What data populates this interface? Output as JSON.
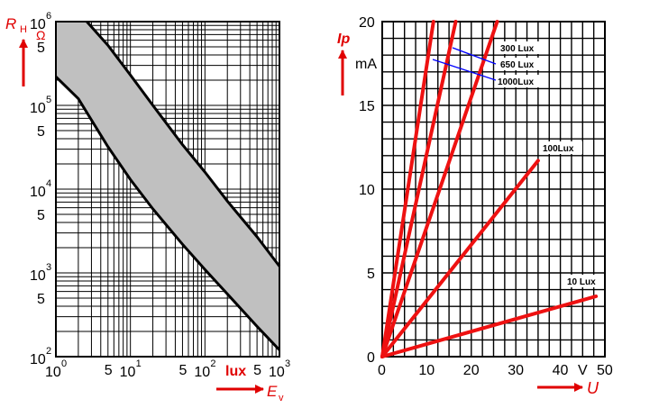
{
  "chart_data": [
    {
      "type": "area",
      "scale": "log-log",
      "grid": true,
      "xlabel": "E",
      "xlabel_sub": "v",
      "xunit": "lux",
      "ylabel": "R",
      "ylabel_sub": "H",
      "yunit": "Ω",
      "xlim": [
        1,
        1000
      ],
      "ylim": [
        100,
        1000000
      ],
      "x_ticks": [
        {
          "base": "10",
          "exp": "0",
          "v": 1
        },
        {
          "base": "5",
          "exp": "",
          "v": 5
        },
        {
          "base": "10",
          "exp": "1",
          "v": 10
        },
        {
          "base": "5",
          "exp": "",
          "v": 50
        },
        {
          "base": "10",
          "exp": "2",
          "v": 100
        },
        {
          "base": "5",
          "exp": "",
          "v": 500
        },
        {
          "base": "10",
          "exp": "3",
          "v": 1000
        }
      ],
      "y_ticks": [
        {
          "base": "10",
          "exp": "6",
          "v": 1000000
        },
        {
          "base": "5",
          "exp": "",
          "v": 500000
        },
        {
          "base": "10",
          "exp": "5",
          "v": 100000
        },
        {
          "base": "5",
          "exp": "",
          "v": 50000
        },
        {
          "base": "10",
          "exp": "4",
          "v": 10000
        },
        {
          "base": "5",
          "exp": "",
          "v": 5000
        },
        {
          "base": "10",
          "exp": "3",
          "v": 1000
        },
        {
          "base": "5",
          "exp": "",
          "v": 500
        },
        {
          "base": "10",
          "exp": "2",
          "v": 100
        }
      ],
      "series": [
        {
          "name": "upper",
          "x": [
            2.6,
            5,
            10,
            20,
            50,
            100,
            200,
            500,
            1000
          ],
          "y": [
            1000000,
            520000,
            230000,
            100000,
            34000,
            16000,
            7200,
            2700,
            1200
          ]
        },
        {
          "name": "lower",
          "x": [
            1,
            2,
            5,
            10,
            20,
            50,
            100,
            200,
            500,
            1000
          ],
          "y": [
            220000,
            120000,
            32000,
            13000,
            5800,
            2200,
            1100,
            560,
            230,
            120
          ]
        }
      ],
      "band_color": "#c0c0c0"
    },
    {
      "type": "line",
      "grid": true,
      "xlabel": "U",
      "xunit": "V",
      "ylabel": "Ip",
      "yunit": "mA",
      "xlim": [
        0,
        50
      ],
      "ylim": [
        0,
        20
      ],
      "x_ticks": [
        0,
        10,
        20,
        30,
        40,
        50
      ],
      "y_ticks": [
        0,
        5,
        10,
        15,
        20
      ],
      "series": [
        {
          "name": "1000Lux",
          "x": [
            0,
            11.5
          ],
          "y": [
            0,
            20
          ]
        },
        {
          "name": "650 Lux",
          "x": [
            0,
            16.5
          ],
          "y": [
            0,
            20
          ]
        },
        {
          "name": "300 Lux",
          "x": [
            0,
            25.8
          ],
          "y": [
            0,
            20
          ]
        },
        {
          "name": "100Lux",
          "x": [
            0,
            35
          ],
          "y": [
            0,
            11.7
          ]
        },
        {
          "name": "10 Lux",
          "x": [
            0,
            48
          ],
          "y": [
            0,
            3.6
          ]
        }
      ],
      "line_color": "#ee1111",
      "legend_line_color": "#0000ff",
      "annotations": [
        "300 Lux",
        "650 Lux",
        "1000Lux",
        "100Lux",
        "10 Lux"
      ]
    }
  ]
}
